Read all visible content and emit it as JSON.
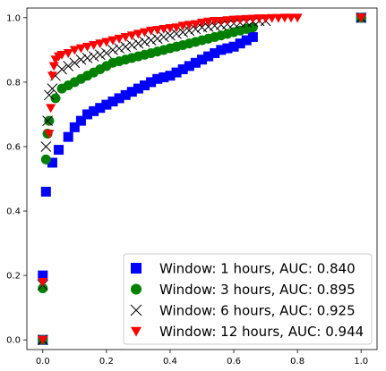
{
  "chart_data": {
    "type": "scatter",
    "title": "",
    "xlabel": "",
    "ylabel": "",
    "xlim": [
      -0.05,
      1.05
    ],
    "ylim": [
      -0.03,
      1.03
    ],
    "grid": false,
    "legend_position": "bottom-right",
    "x_ticks": [
      "0.0",
      "0.2",
      "0.4",
      "0.6",
      "0.8",
      "1.0"
    ],
    "y_ticks": [
      "0.0",
      "0.2",
      "0.4",
      "0.6",
      "0.8",
      "1.0"
    ],
    "series": [
      {
        "name": "Window: 1 hours, AUC: 0.840",
        "color": "#0000ff",
        "marker": "square",
        "points": [
          [
            0,
            0
          ],
          [
            0,
            0.2
          ],
          [
            0.01,
            0.46
          ],
          [
            0.03,
            0.55
          ],
          [
            0.05,
            0.59
          ],
          [
            0.08,
            0.63
          ],
          [
            0.1,
            0.66
          ],
          [
            0.12,
            0.68
          ],
          [
            0.14,
            0.7
          ],
          [
            0.16,
            0.71
          ],
          [
            0.18,
            0.72
          ],
          [
            0.2,
            0.73
          ],
          [
            0.22,
            0.74
          ],
          [
            0.24,
            0.75
          ],
          [
            0.26,
            0.76
          ],
          [
            0.28,
            0.77
          ],
          [
            0.3,
            0.78
          ],
          [
            0.32,
            0.79
          ],
          [
            0.34,
            0.8
          ],
          [
            0.36,
            0.81
          ],
          [
            0.38,
            0.815
          ],
          [
            0.4,
            0.82
          ],
          [
            0.42,
            0.83
          ],
          [
            0.44,
            0.84
          ],
          [
            0.46,
            0.85
          ],
          [
            0.48,
            0.86
          ],
          [
            0.5,
            0.87
          ],
          [
            0.52,
            0.88
          ],
          [
            0.54,
            0.89
          ],
          [
            0.56,
            0.9
          ],
          [
            0.58,
            0.905
          ],
          [
            0.6,
            0.91
          ],
          [
            0.62,
            0.92
          ],
          [
            0.64,
            0.93
          ],
          [
            0.66,
            0.94
          ],
          [
            1,
            1
          ]
        ]
      },
      {
        "name": "Window: 3 hours, AUC: 0.895",
        "color": "#008000",
        "marker": "circle",
        "points": [
          [
            0,
            0
          ],
          [
            0,
            0.16
          ],
          [
            0.01,
            0.56
          ],
          [
            0.015,
            0.64
          ],
          [
            0.02,
            0.68
          ],
          [
            0.04,
            0.75
          ],
          [
            0.06,
            0.78
          ],
          [
            0.08,
            0.79
          ],
          [
            0.1,
            0.8
          ],
          [
            0.12,
            0.81
          ],
          [
            0.14,
            0.82
          ],
          [
            0.16,
            0.83
          ],
          [
            0.18,
            0.84
          ],
          [
            0.2,
            0.85
          ],
          [
            0.22,
            0.86
          ],
          [
            0.24,
            0.865
          ],
          [
            0.26,
            0.87
          ],
          [
            0.28,
            0.875
          ],
          [
            0.3,
            0.88
          ],
          [
            0.32,
            0.885
          ],
          [
            0.34,
            0.89
          ],
          [
            0.36,
            0.895
          ],
          [
            0.38,
            0.9
          ],
          [
            0.4,
            0.905
          ],
          [
            0.42,
            0.91
          ],
          [
            0.44,
            0.915
          ],
          [
            0.46,
            0.92
          ],
          [
            0.48,
            0.925
          ],
          [
            0.5,
            0.93
          ],
          [
            0.52,
            0.935
          ],
          [
            0.54,
            0.94
          ],
          [
            0.56,
            0.945
          ],
          [
            0.58,
            0.95
          ],
          [
            0.6,
            0.955
          ],
          [
            0.62,
            0.96
          ],
          [
            0.64,
            0.965
          ],
          [
            0.66,
            0.97
          ],
          [
            1,
            1
          ]
        ]
      },
      {
        "name": "Window: 6 hours, AUC: 0.925",
        "color": "#000000",
        "marker": "x",
        "points": [
          [
            0,
            0
          ],
          [
            0,
            0.17
          ],
          [
            0.01,
            0.6
          ],
          [
            0.015,
            0.68
          ],
          [
            0.02,
            0.76
          ],
          [
            0.03,
            0.78
          ],
          [
            0.04,
            0.82
          ],
          [
            0.06,
            0.84
          ],
          [
            0.08,
            0.85
          ],
          [
            0.1,
            0.86
          ],
          [
            0.12,
            0.87
          ],
          [
            0.14,
            0.875
          ],
          [
            0.16,
            0.88
          ],
          [
            0.18,
            0.885
          ],
          [
            0.2,
            0.89
          ],
          [
            0.22,
            0.9
          ],
          [
            0.24,
            0.905
          ],
          [
            0.26,
            0.91
          ],
          [
            0.28,
            0.915
          ],
          [
            0.3,
            0.92
          ],
          [
            0.32,
            0.925
          ],
          [
            0.34,
            0.93
          ],
          [
            0.36,
            0.935
          ],
          [
            0.38,
            0.94
          ],
          [
            0.4,
            0.945
          ],
          [
            0.42,
            0.95
          ],
          [
            0.44,
            0.955
          ],
          [
            0.46,
            0.96
          ],
          [
            0.48,
            0.965
          ],
          [
            0.5,
            0.97
          ],
          [
            0.52,
            0.972
          ],
          [
            0.54,
            0.975
          ],
          [
            0.56,
            0.978
          ],
          [
            0.58,
            0.98
          ],
          [
            0.6,
            0.982
          ],
          [
            0.62,
            0.984
          ],
          [
            0.64,
            0.986
          ],
          [
            0.66,
            0.988
          ],
          [
            0.68,
            0.99
          ],
          [
            0.7,
            0.99
          ],
          [
            1,
            1
          ]
        ]
      },
      {
        "name": "Window: 12 hours, AUC: 0.944",
        "color": "#ff0000",
        "marker": "triangle-down",
        "points": [
          [
            0,
            0
          ],
          [
            0,
            0.18
          ],
          [
            0.02,
            0.64
          ],
          [
            0.025,
            0.72
          ],
          [
            0.03,
            0.82
          ],
          [
            0.035,
            0.85
          ],
          [
            0.04,
            0.87
          ],
          [
            0.05,
            0.88
          ],
          [
            0.06,
            0.885
          ],
          [
            0.08,
            0.89
          ],
          [
            0.1,
            0.9
          ],
          [
            0.12,
            0.905
          ],
          [
            0.14,
            0.91
          ],
          [
            0.16,
            0.915
          ],
          [
            0.18,
            0.92
          ],
          [
            0.2,
            0.925
          ],
          [
            0.22,
            0.93
          ],
          [
            0.24,
            0.935
          ],
          [
            0.26,
            0.94
          ],
          [
            0.28,
            0.945
          ],
          [
            0.3,
            0.95
          ],
          [
            0.32,
            0.955
          ],
          [
            0.34,
            0.96
          ],
          [
            0.36,
            0.962
          ],
          [
            0.38,
            0.965
          ],
          [
            0.4,
            0.968
          ],
          [
            0.42,
            0.97
          ],
          [
            0.44,
            0.975
          ],
          [
            0.46,
            0.978
          ],
          [
            0.48,
            0.98
          ],
          [
            0.5,
            0.985
          ],
          [
            0.52,
            0.988
          ],
          [
            0.54,
            0.99
          ],
          [
            0.56,
            0.99
          ],
          [
            0.58,
            0.992
          ],
          [
            0.6,
            0.994
          ],
          [
            0.62,
            0.995
          ],
          [
            0.64,
            0.996
          ],
          [
            0.66,
            0.997
          ],
          [
            0.68,
            0.998
          ],
          [
            0.7,
            0.998
          ],
          [
            0.72,
            0.999
          ],
          [
            0.74,
            0.999
          ],
          [
            0.76,
            1.0
          ],
          [
            0.78,
            1.0
          ],
          [
            0.8,
            1.0
          ],
          [
            1,
            1
          ]
        ]
      }
    ]
  }
}
